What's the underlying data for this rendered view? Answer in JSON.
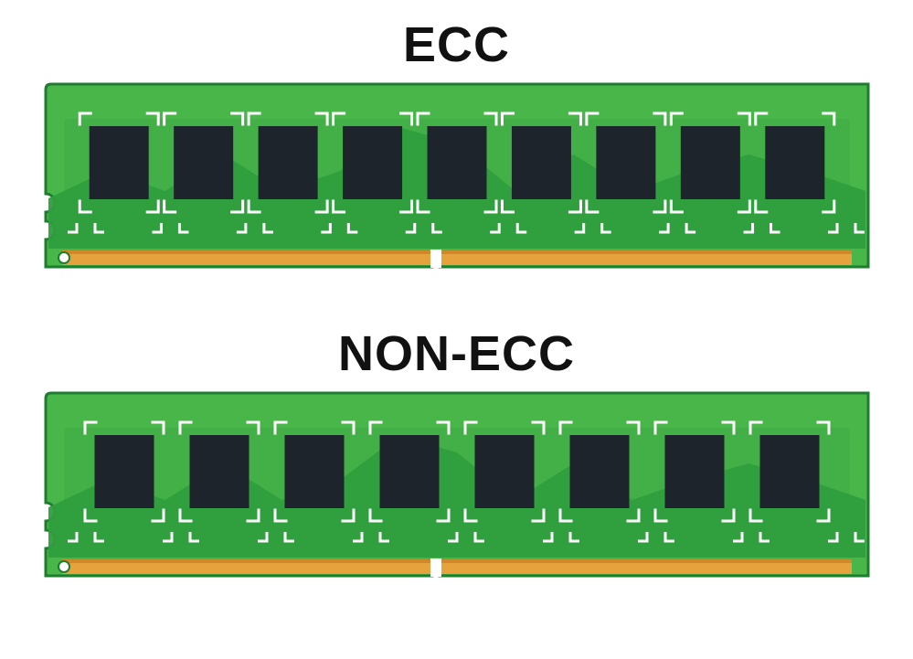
{
  "type": "infographic",
  "background_color": "#ffffff",
  "title_color": "#111111",
  "title_fontsize": 54,
  "title_fontweight": 900,
  "modules": [
    {
      "title": "ECC",
      "chip_count": 9,
      "pcb_color": "#48b648",
      "pcb_dark": "#2f9e3e",
      "pcb_outline": "#1e7d2e",
      "chip_color": "#1d242c",
      "contact_color": "#e6a23c",
      "contact_shadow": "#c47f20",
      "marker_color": "#ffffff",
      "chip_w": 65,
      "chip_h": 80,
      "bracket_w": 86,
      "bracket_h": 108
    },
    {
      "title": "NON-ECC",
      "chip_count": 8,
      "pcb_color": "#48b648",
      "pcb_dark": "#2f9e3e",
      "pcb_outline": "#1e7d2e",
      "chip_color": "#1d242c",
      "contact_color": "#e6a23c",
      "contact_shadow": "#c47f20",
      "marker_color": "#ffffff",
      "chip_w": 65,
      "chip_h": 80,
      "bracket_w": 86,
      "bracket_h": 108
    }
  ]
}
